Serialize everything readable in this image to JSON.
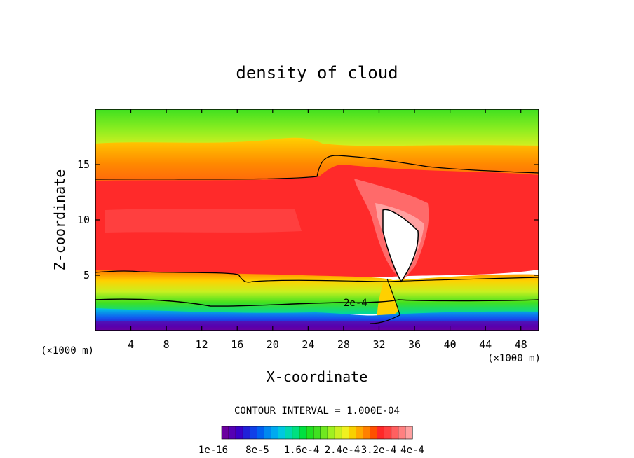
{
  "chart_data": {
    "type": "heatmap",
    "title": "density of cloud",
    "xlabel": "X-coordinate",
    "ylabel": "Z-coordinate",
    "x_unit": "(×1000 m)",
    "y_unit": "(×1000 m)",
    "xlim": [
      0,
      50
    ],
    "ylim": [
      0,
      20
    ],
    "x_ticks": [
      4,
      8,
      12,
      16,
      20,
      24,
      28,
      32,
      36,
      40,
      44,
      48
    ],
    "y_ticks": [
      5,
      10,
      15
    ],
    "grid": false,
    "contour_interval_label": "CONTOUR INTERVAL = 1.000E-04",
    "contour_annotation": "2e-4",
    "colorbar": {
      "orientation": "horizontal",
      "min": 1e-16,
      "max": 0.0004,
      "tick_labels": [
        "1e-16",
        "8e-5",
        "1.6e-4",
        "2.4e-4",
        "3.2e-4",
        "4e-4"
      ],
      "colors": [
        "#6a009e",
        "#5500b4",
        "#3a00c8",
        "#2020d8",
        "#1040e8",
        "#0060f0",
        "#0088f0",
        "#00aaf0",
        "#00c8e0",
        "#00d8b0",
        "#00e080",
        "#00e040",
        "#20e020",
        "#40e020",
        "#70e820",
        "#a0f020",
        "#ccf020",
        "#f0f020",
        "#f8d000",
        "#ffa800",
        "#ff8000",
        "#ff5000",
        "#ff2828",
        "#ff4040",
        "#ff6060",
        "#ff8080",
        "#ffa0a0"
      ]
    },
    "fields": [
      {
        "name": "upper-green-band",
        "z_range_km": [
          17,
          20
        ],
        "value_approx": 0.00014
      },
      {
        "name": "orange-band",
        "z_range_km": [
          13.5,
          16
        ],
        "value_approx": 0.00024
      },
      {
        "name": "red-core",
        "z_range_km": [
          6,
          13
        ],
        "value_approx": 0.00031
      },
      {
        "name": "low-level-yellow-green",
        "z_range_km": [
          2.5,
          5
        ],
        "value_approx": 0.00018
      },
      {
        "name": "surface-blue-purple",
        "z_range_km": [
          0.5,
          2
        ],
        "value_approx": 3e-05
      },
      {
        "name": "updraft-max",
        "x_km": 34,
        "z_range_km": [
          4,
          11
        ],
        "value_approx": 0.0004
      }
    ]
  }
}
